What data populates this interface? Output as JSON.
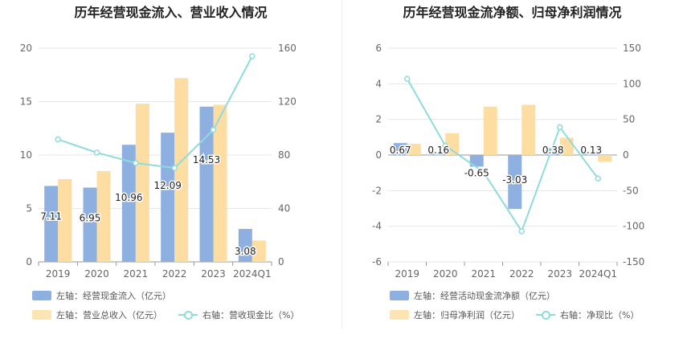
{
  "chart_data": [
    {
      "type": "bar",
      "title": "历年经营现金流入、营业收入情况",
      "categories": [
        "2019",
        "2020",
        "2021",
        "2022",
        "2023",
        "2024Q1"
      ],
      "left_axis": {
        "ylim": [
          0,
          20
        ],
        "ticks": [
          "0",
          "5",
          "10",
          "15",
          "20"
        ]
      },
      "right_axis": {
        "ylim": [
          0,
          160
        ],
        "ticks": [
          "0",
          "40",
          "80",
          "120",
          "160"
        ]
      },
      "series": [
        {
          "name": "左轴：经营现金流入（亿元）",
          "type": "bar",
          "axis": "left",
          "color": "#8eb0e0",
          "values": [
            7.11,
            6.95,
            10.96,
            12.09,
            14.53,
            3.08
          ],
          "labels": [
            "7.11",
            "6.95",
            "10.96",
            "12.09",
            "14.53",
            "3.08"
          ]
        },
        {
          "name": "左轴：营业总收入（亿元）",
          "type": "bar",
          "axis": "left",
          "color": "#fddb9c",
          "values": [
            7.75,
            8.5,
            14.8,
            17.2,
            14.7,
            2.0
          ]
        },
        {
          "name": "右轴：营收现金比（%）",
          "type": "line",
          "axis": "right",
          "color": "#8fdbdc",
          "values": [
            91.7,
            81.8,
            74.0,
            70.3,
            98.8,
            154.0
          ]
        }
      ]
    },
    {
      "type": "bar",
      "title": "历年经营现金流净额、归母净利润情况",
      "categories": [
        "2019",
        "2020",
        "2021",
        "2022",
        "2023",
        "2024Q1"
      ],
      "left_axis": {
        "ylim": [
          -6,
          6
        ],
        "ticks": [
          "-6",
          "-4",
          "-2",
          "0",
          "2",
          "4",
          "6"
        ]
      },
      "right_axis": {
        "ylim": [
          -150,
          150
        ],
        "ticks": [
          "-150",
          "-100",
          "-50",
          "0",
          "50",
          "100",
          "150"
        ]
      },
      "series": [
        {
          "name": "左轴：经营活动现金流净额（亿元）",
          "type": "bar",
          "axis": "left",
          "color": "#8eb0e0",
          "values": [
            0.67,
            0.16,
            -0.65,
            -3.03,
            0.38,
            0.13
          ],
          "labels": [
            "0.67",
            "0.16",
            "-0.65",
            "-3.03",
            "0.38",
            "0.13"
          ]
        },
        {
          "name": "左轴：归母净利润（亿元）",
          "type": "bar",
          "axis": "left",
          "color": "#fddb9c",
          "values": [
            0.63,
            1.22,
            2.72,
            2.82,
            0.97,
            -0.38
          ]
        },
        {
          "name": "右轴：净现比（%）",
          "type": "line",
          "axis": "right",
          "color": "#8fdbdc",
          "values": [
            107,
            13,
            -24,
            -107,
            39,
            -33
          ]
        }
      ]
    }
  ]
}
